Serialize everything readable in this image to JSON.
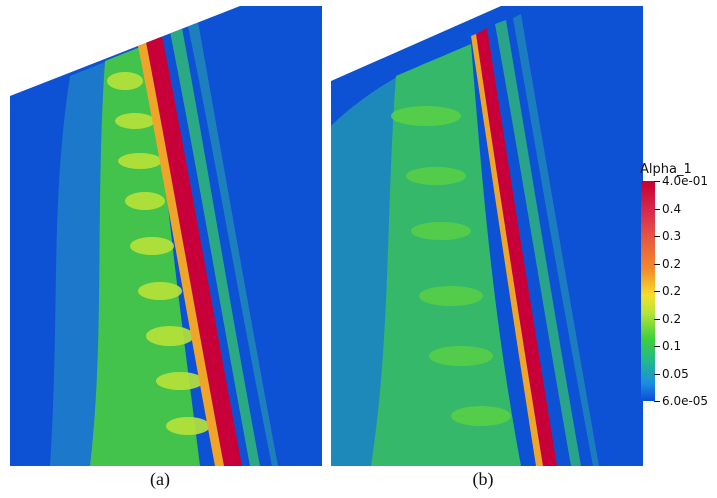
{
  "captions": {
    "a": "(a)",
    "b": "(b)"
  },
  "legend": {
    "title": "Alpha_1",
    "ticks": [
      "4.0e-01",
      "0.4",
      "0.3",
      "0.2",
      "0.2",
      "0.2",
      "0.1",
      "0.05",
      "6.0e-05"
    ],
    "colors": {
      "max": "#c8002f",
      "high": "#f28a2a",
      "mid": "#f3e02a",
      "low_mid": "#3ecf3b",
      "low": "#1b8ce0",
      "min": "#0b4fd6"
    }
  }
}
